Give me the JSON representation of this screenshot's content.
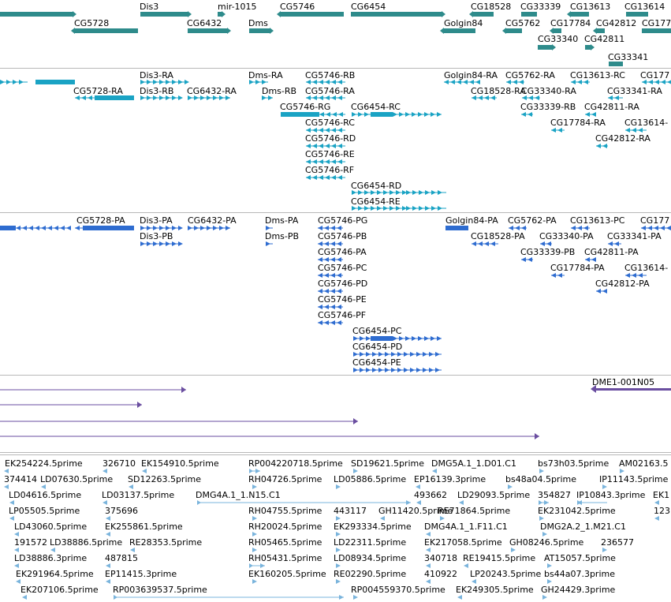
{
  "colors": {
    "gene": "#2e8b8b",
    "rna": "#1aa3c4",
    "protein": "#2e6cd0",
    "clone": "#6a4ea0",
    "est": "#7ab4dc",
    "separator": "#b8b8b8"
  },
  "tracks": {
    "genes": {
      "labels": [
        {
          "text": "Dis3"
        },
        {
          "text": "mir-1015"
        },
        {
          "text": "CG5746"
        },
        {
          "text": "CG6454"
        },
        {
          "text": "CG18528"
        },
        {
          "text": "CG33339"
        },
        {
          "text": "CG13613"
        },
        {
          "text": "CG13614"
        },
        {
          "text": "CG5728"
        },
        {
          "text": "CG6432"
        },
        {
          "text": "Dms"
        },
        {
          "text": "Golgin84"
        },
        {
          "text": "CG5762"
        },
        {
          "text": "CG17784"
        },
        {
          "text": "CG42812"
        },
        {
          "text": "CG177"
        },
        {
          "text": "CG33340"
        },
        {
          "text": "CG42811"
        },
        {
          "text": "CG33341"
        }
      ]
    },
    "transcripts": {
      "labels": [
        {
          "text": "Dis3-RA"
        },
        {
          "text": "Dms-RA"
        },
        {
          "text": "CG5746-RB"
        },
        {
          "text": "Golgin84-RA"
        },
        {
          "text": "CG5762-RA"
        },
        {
          "text": "CG13613-RC"
        },
        {
          "text": "CG177"
        },
        {
          "text": "CG5728-RA"
        },
        {
          "text": "Dis3-RB"
        },
        {
          "text": "CG6432-RA"
        },
        {
          "text": "Dms-RB"
        },
        {
          "text": "CG5746-RA"
        },
        {
          "text": "CG18528-RA"
        },
        {
          "text": "CG33340-RA"
        },
        {
          "text": "CG33341-RA"
        },
        {
          "text": "CG5746-RG"
        },
        {
          "text": "CG6454-RC"
        },
        {
          "text": "CG33339-RB"
        },
        {
          "text": "CG42811-RA"
        },
        {
          "text": "CG5746-RC"
        },
        {
          "text": "CG17784-RA"
        },
        {
          "text": "CG13614-"
        },
        {
          "text": "CG5746-RD"
        },
        {
          "text": "CG42812-RA"
        },
        {
          "text": "CG5746-RE"
        },
        {
          "text": "CG5746-RF"
        },
        {
          "text": "CG6454-RD"
        },
        {
          "text": "CG6454-RE"
        }
      ]
    },
    "proteins": {
      "labels": [
        {
          "text": "CG5728-PA"
        },
        {
          "text": "Dis3-PA"
        },
        {
          "text": "CG6432-PA"
        },
        {
          "text": "Dms-PA"
        },
        {
          "text": "CG5746-PG"
        },
        {
          "text": "Golgin84-PA"
        },
        {
          "text": "CG5762-PA"
        },
        {
          "text": "CG13613-PC"
        },
        {
          "text": "CG177"
        },
        {
          "text": "Dis3-PB"
        },
        {
          "text": "Dms-PB"
        },
        {
          "text": "CG5746-PB"
        },
        {
          "text": "CG18528-PA"
        },
        {
          "text": "CG33340-PA"
        },
        {
          "text": "CG33341-PA"
        },
        {
          "text": "CG5746-PA"
        },
        {
          "text": "CG33339-PB"
        },
        {
          "text": "CG42811-PA"
        },
        {
          "text": "CG5746-PC"
        },
        {
          "text": "CG17784-PA"
        },
        {
          "text": "CG13614-"
        },
        {
          "text": "CG5746-PD"
        },
        {
          "text": "CG42812-PA"
        },
        {
          "text": "CG5746-PE"
        },
        {
          "text": "CG5746-PF"
        },
        {
          "text": "CG6454-PC"
        },
        {
          "text": "CG6454-PD"
        },
        {
          "text": "CG6454-PE"
        }
      ]
    },
    "clones": {
      "labels": [
        {
          "text": "DME1-001N05"
        }
      ]
    },
    "ests": {
      "labels": [
        {
          "text": "EK254224.5prime"
        },
        {
          "text": "326710"
        },
        {
          "text": "EK154910.5prime"
        },
        {
          "text": "RP004220718.5prime"
        },
        {
          "text": "SD19621.5prime"
        },
        {
          "text": "DMG5A.1_1.D01.C1"
        },
        {
          "text": "bs73h03.5prime"
        },
        {
          "text": "AM02163.5"
        },
        {
          "text": "374414"
        },
        {
          "text": "LD07630.5prime"
        },
        {
          "text": "SD12263.5prime"
        },
        {
          "text": "RH04726.5prime"
        },
        {
          "text": "LD05886.5prime"
        },
        {
          "text": "EP16139.3prime"
        },
        {
          "text": "bs48a04.5prime"
        },
        {
          "text": "IP11143.5prime"
        },
        {
          "text": "LD04616.5prime"
        },
        {
          "text": "LD03137.5prime"
        },
        {
          "text": "DMG4A.1_1.N15.C1"
        },
        {
          "text": "493662"
        },
        {
          "text": "LD29093.5prime"
        },
        {
          "text": "354827"
        },
        {
          "text": "IP10843.3prime"
        },
        {
          "text": "EK1"
        },
        {
          "text": "LP05505.5prime"
        },
        {
          "text": "375696"
        },
        {
          "text": "RH04755.5prime"
        },
        {
          "text": "443117"
        },
        {
          "text": "GH11420.5prime"
        },
        {
          "text": "RE71864.5prime"
        },
        {
          "text": "EK231042.5prime"
        },
        {
          "text": "123"
        },
        {
          "text": "LD43060.5prime"
        },
        {
          "text": "EK255861.5prime"
        },
        {
          "text": "RH20024.5prime"
        },
        {
          "text": "EK293334.5prime"
        },
        {
          "text": "DMG4A.1_1.F11.C1"
        },
        {
          "text": "DMG2A.2_1.M21.C1"
        },
        {
          "text": "191572"
        },
        {
          "text": "LD38886.5prime"
        },
        {
          "text": "RE28353.5prime"
        },
        {
          "text": "RH05465.5prime"
        },
        {
          "text": "LD22311.5prime"
        },
        {
          "text": "EK217058.5prime"
        },
        {
          "text": "GH08246.5prime"
        },
        {
          "text": "236577"
        },
        {
          "text": "LD38886.3prime"
        },
        {
          "text": "487815"
        },
        {
          "text": "RH05431.5prime"
        },
        {
          "text": "LD08934.5prime"
        },
        {
          "text": "340718"
        },
        {
          "text": "RE19415.5prime"
        },
        {
          "text": "AT15057.5prime"
        },
        {
          "text": "EK291964.5prime"
        },
        {
          "text": "EP11415.3prime"
        },
        {
          "text": "EK160205.5prime"
        },
        {
          "text": "RE02290.5prime"
        },
        {
          "text": "410922"
        },
        {
          "text": "LP20243.5prime"
        },
        {
          "text": "bs44a07.3prime"
        },
        {
          "text": "EK207106.5prime"
        },
        {
          "text": "RP003639537.5prime"
        },
        {
          "text": "RP004559370.5prime"
        },
        {
          "text": "EK249305.5prime"
        },
        {
          "text": "GH24429.3prime"
        }
      ]
    }
  }
}
